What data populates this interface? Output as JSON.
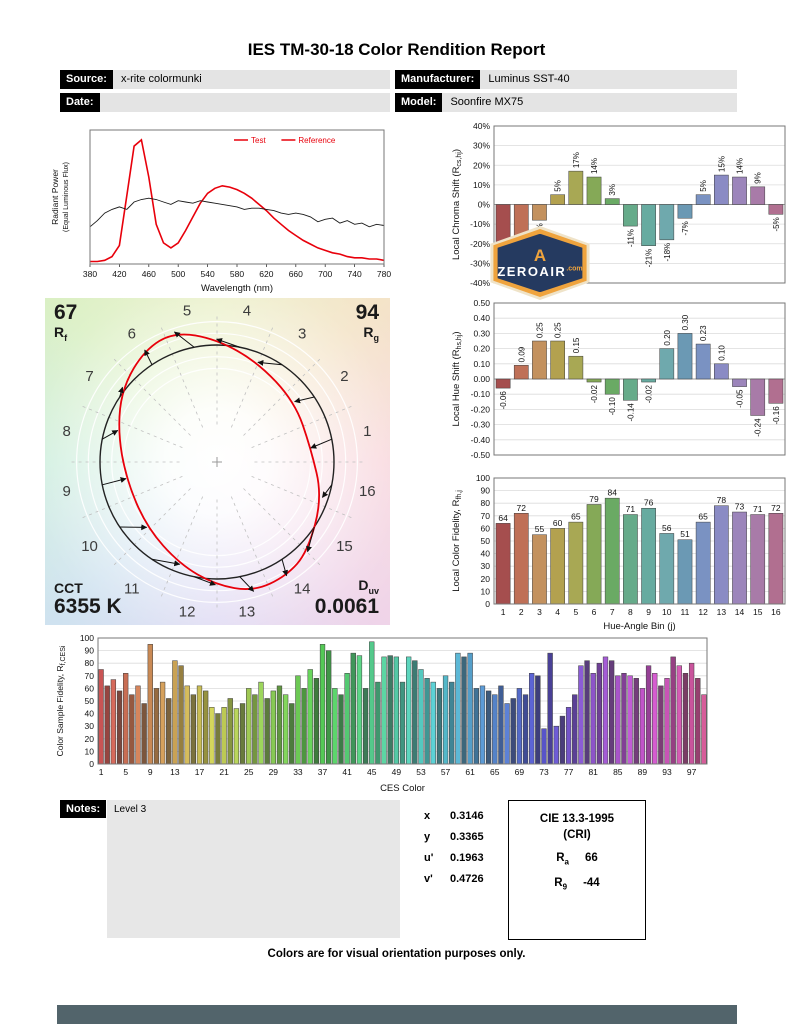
{
  "title": "IES TM-30-18 Color Rendition Report",
  "header": {
    "source_label": "Source:",
    "source_value": "x-rite colormunki",
    "date_label": "Date:",
    "date_value": "",
    "manufacturer_label": "Manufacturer:",
    "manufacturer_value": "Luminus SST-40",
    "model_label": "Model:",
    "model_value": "Soonfire MX75"
  },
  "watermark": {
    "name": "ZEROAIR",
    "suffix": ".com",
    "icon_letter": "A"
  },
  "colors": {
    "test_red": "#e8000b",
    "reference_black": "#1a1a1a",
    "header_label_bg": "#000000",
    "header_value_bg": "#e4e4e4",
    "notes_bg": "#e7e7e7",
    "badge_navy": "#253a60",
    "badge_orange": "#efa33d",
    "bottom_strip": "#52646b"
  },
  "bin_colors": [
    "#a54e4e",
    "#bf7057",
    "#c3915e",
    "#b3a14f",
    "#a8a854",
    "#85a957",
    "#6aaa64",
    "#66ab8a",
    "#67aba0",
    "#6fa9ad",
    "#6b99b4",
    "#7a92c2",
    "#8a8bc4",
    "#9c85bb",
    "#a87ba8",
    "#b16f90"
  ],
  "cvg": {
    "rf": {
      "value": "67",
      "label_main": "R",
      "label_sub": "f"
    },
    "rg": {
      "value": "94",
      "label_main": "R",
      "label_sub": "g"
    },
    "cct": {
      "label": "CCT",
      "value": "6355 K"
    },
    "duv": {
      "label_main": "D",
      "label_sub": "uv",
      "value": "0.0061"
    },
    "bin_count": 16
  },
  "chart_data": [
    {
      "id": "spd",
      "type": "line",
      "xlabel": "Wavelength (nm)",
      "ylabel_line1": "Radiant Power",
      "ylabel_line2": "(Equal Luminous Flux)",
      "xlim": [
        380,
        780
      ],
      "ylim": [
        0,
        1.08
      ],
      "x_ticks": [
        380,
        420,
        460,
        500,
        540,
        580,
        620,
        660,
        700,
        740,
        780
      ],
      "x_start": 380,
      "x_step": 10,
      "legend": [
        {
          "label": "Test",
          "color": "#e8000b"
        },
        {
          "label": "Reference",
          "color": "#e8000b"
        }
      ],
      "series": [
        {
          "name": "Test",
          "color": "#e8000b",
          "width": 1.6,
          "y": [
            0.02,
            0.02,
            0.03,
            0.06,
            0.15,
            0.55,
            0.95,
            1.0,
            0.7,
            0.32,
            0.17,
            0.13,
            0.17,
            0.27,
            0.38,
            0.49,
            0.57,
            0.61,
            0.63,
            0.62,
            0.6,
            0.57,
            0.53,
            0.48,
            0.43,
            0.37,
            0.32,
            0.27,
            0.23,
            0.19,
            0.16,
            0.13,
            0.11,
            0.09,
            0.08,
            0.06,
            0.05,
            0.05,
            0.04,
            0.04,
            0.03
          ]
        },
        {
          "name": "Reference",
          "color": "#1a1a1a",
          "width": 0.9,
          "y": [
            0.3,
            0.35,
            0.41,
            0.44,
            0.46,
            0.44,
            0.5,
            0.52,
            0.53,
            0.52,
            0.5,
            0.48,
            0.51,
            0.5,
            0.49,
            0.51,
            0.5,
            0.49,
            0.48,
            0.47,
            0.46,
            0.44,
            0.45,
            0.45,
            0.44,
            0.43,
            0.41,
            0.4,
            0.41,
            0.4,
            0.38,
            0.34,
            0.36,
            0.37,
            0.33,
            0.35,
            0.32,
            0.33,
            0.3,
            0.32,
            0.31
          ]
        }
      ]
    },
    {
      "id": "chroma",
      "type": "bar",
      "ylabel_pre": "Local Chroma Shift (R",
      "ylabel_sub": "cs,hj",
      "ylabel_post": ")",
      "ylim": [
        -40,
        40
      ],
      "ystep": 10,
      "ytick_format": "percent",
      "use_bin_colors": true,
      "label_mode": "rotated",
      "categories": [
        1,
        2,
        3,
        4,
        5,
        6,
        7,
        8,
        9,
        10,
        11,
        12,
        13,
        14,
        15,
        16
      ],
      "values": [
        -19,
        -16,
        -8,
        5,
        17,
        14,
        3,
        -11,
        -21,
        -18,
        -7,
        5,
        15,
        14,
        9,
        -5
      ],
      "labels": [
        "-19%",
        "-16%",
        "-8%",
        "5%",
        "17%",
        "14%",
        "3%",
        "-11%",
        "-21%",
        "-18%",
        "-7%",
        "5%",
        "15%",
        "14%",
        "9%",
        "-5%"
      ]
    },
    {
      "id": "hue",
      "type": "bar",
      "ylabel_pre": "Local Hue Shift (R",
      "ylabel_sub": "hs,hj",
      "ylabel_post": ")",
      "ylim": [
        -0.5,
        0.5
      ],
      "ystep": 0.1,
      "ytick_format": "dec2",
      "use_bin_colors": true,
      "label_mode": "rotated",
      "categories": [
        1,
        2,
        3,
        4,
        5,
        6,
        7,
        8,
        9,
        10,
        11,
        12,
        13,
        14,
        15,
        16
      ],
      "values": [
        -0.06,
        0.09,
        0.25,
        0.25,
        0.15,
        -0.02,
        -0.1,
        -0.14,
        -0.02,
        0.2,
        0.3,
        0.23,
        0.1,
        -0.05,
        -0.24,
        -0.16
      ],
      "labels": [
        "-0.06",
        "0.09",
        "0.25",
        "0.25",
        "0.15",
        "-0.02",
        "-0.10",
        "-0.14",
        "-0.02",
        "0.20",
        "0.30",
        "0.23",
        "0.10",
        "-0.05",
        "-0.24",
        "-0.16"
      ]
    },
    {
      "id": "fidelity",
      "type": "bar",
      "ylabel_pre": "Local Color Fidelity, R",
      "ylabel_sub": "fh,j",
      "ylabel_post": "",
      "xlabel": "Hue-Angle Bin (j)",
      "ylim": [
        0,
        100
      ],
      "ystep": 10,
      "ytick_format": "int",
      "use_bin_colors": true,
      "label_mode": "top",
      "xticks": "each",
      "categories": [
        1,
        2,
        3,
        4,
        5,
        6,
        7,
        8,
        9,
        10,
        11,
        12,
        13,
        14,
        15,
        16
      ],
      "values": [
        64,
        72,
        55,
        60,
        65,
        79,
        84,
        71,
        76,
        56,
        51,
        65,
        78,
        73,
        71,
        72
      ],
      "labels": [
        "64",
        "72",
        "55",
        "60",
        "65",
        "79",
        "84",
        "71",
        "76",
        "56",
        "51",
        "65",
        "78",
        "73",
        "71",
        "72"
      ]
    },
    {
      "id": "ces",
      "type": "bar",
      "ylabel_pre": "Color Sample Fidelity, R",
      "ylabel_sub": "f,CESi",
      "ylabel_post": "",
      "xlabel": "CES Color",
      "ylim": [
        0,
        100
      ],
      "ystep": 10,
      "ytick_format": "int",
      "label_mode": "none",
      "xticks": "every4",
      "x_tick_labels": [
        1,
        5,
        9,
        13,
        17,
        21,
        25,
        29,
        33,
        37,
        41,
        45,
        49,
        53,
        57,
        61,
        65,
        69,
        73,
        77,
        81,
        85,
        89,
        93,
        97
      ],
      "color_scale": {
        "hue_start": 0,
        "hue_end": 330,
        "sat_cycle": [
          52,
          40,
          60,
          34
        ],
        "light_cycle": [
          56,
          42,
          60,
          36
        ]
      },
      "values": [
        75,
        62,
        67,
        58,
        72,
        55,
        62,
        48,
        95,
        60,
        65,
        52,
        82,
        78,
        62,
        55,
        62,
        58,
        45,
        40,
        45,
        52,
        44,
        48,
        60,
        55,
        65,
        52,
        58,
        62,
        55,
        48,
        70,
        60,
        75,
        68,
        95,
        90,
        60,
        55,
        72,
        88,
        86,
        60,
        97,
        65,
        85,
        86,
        85,
        65,
        85,
        82,
        75,
        68,
        65,
        60,
        70,
        65,
        88,
        85,
        88,
        60,
        62,
        58,
        55,
        62,
        48,
        52,
        60,
        55,
        72,
        70,
        28,
        88,
        30,
        38,
        45,
        55,
        78,
        82,
        72,
        80,
        85,
        82,
        70,
        72,
        70,
        68,
        60,
        78,
        72,
        62,
        68,
        85,
        78,
        72,
        80,
        68,
        55
      ]
    }
  ],
  "notes": {
    "label": "Notes:",
    "text": "Level 3"
  },
  "chromaticity": {
    "rows": [
      {
        "label": "x",
        "value": "0.3146"
      },
      {
        "label": "y",
        "value": "0.3365"
      },
      {
        "label": "u'",
        "value": "0.1963"
      },
      {
        "label": "v'",
        "value": "0.4726"
      }
    ]
  },
  "cie": {
    "title": "CIE 13.3-1995",
    "subtitle": "(CRI)",
    "ra_main": "R",
    "ra_sub": "a",
    "ra_value": "66",
    "r9_main": "R",
    "r9_sub": "9",
    "r9_value": "-44"
  },
  "footer": "Colors are for visual orientation purposes only."
}
